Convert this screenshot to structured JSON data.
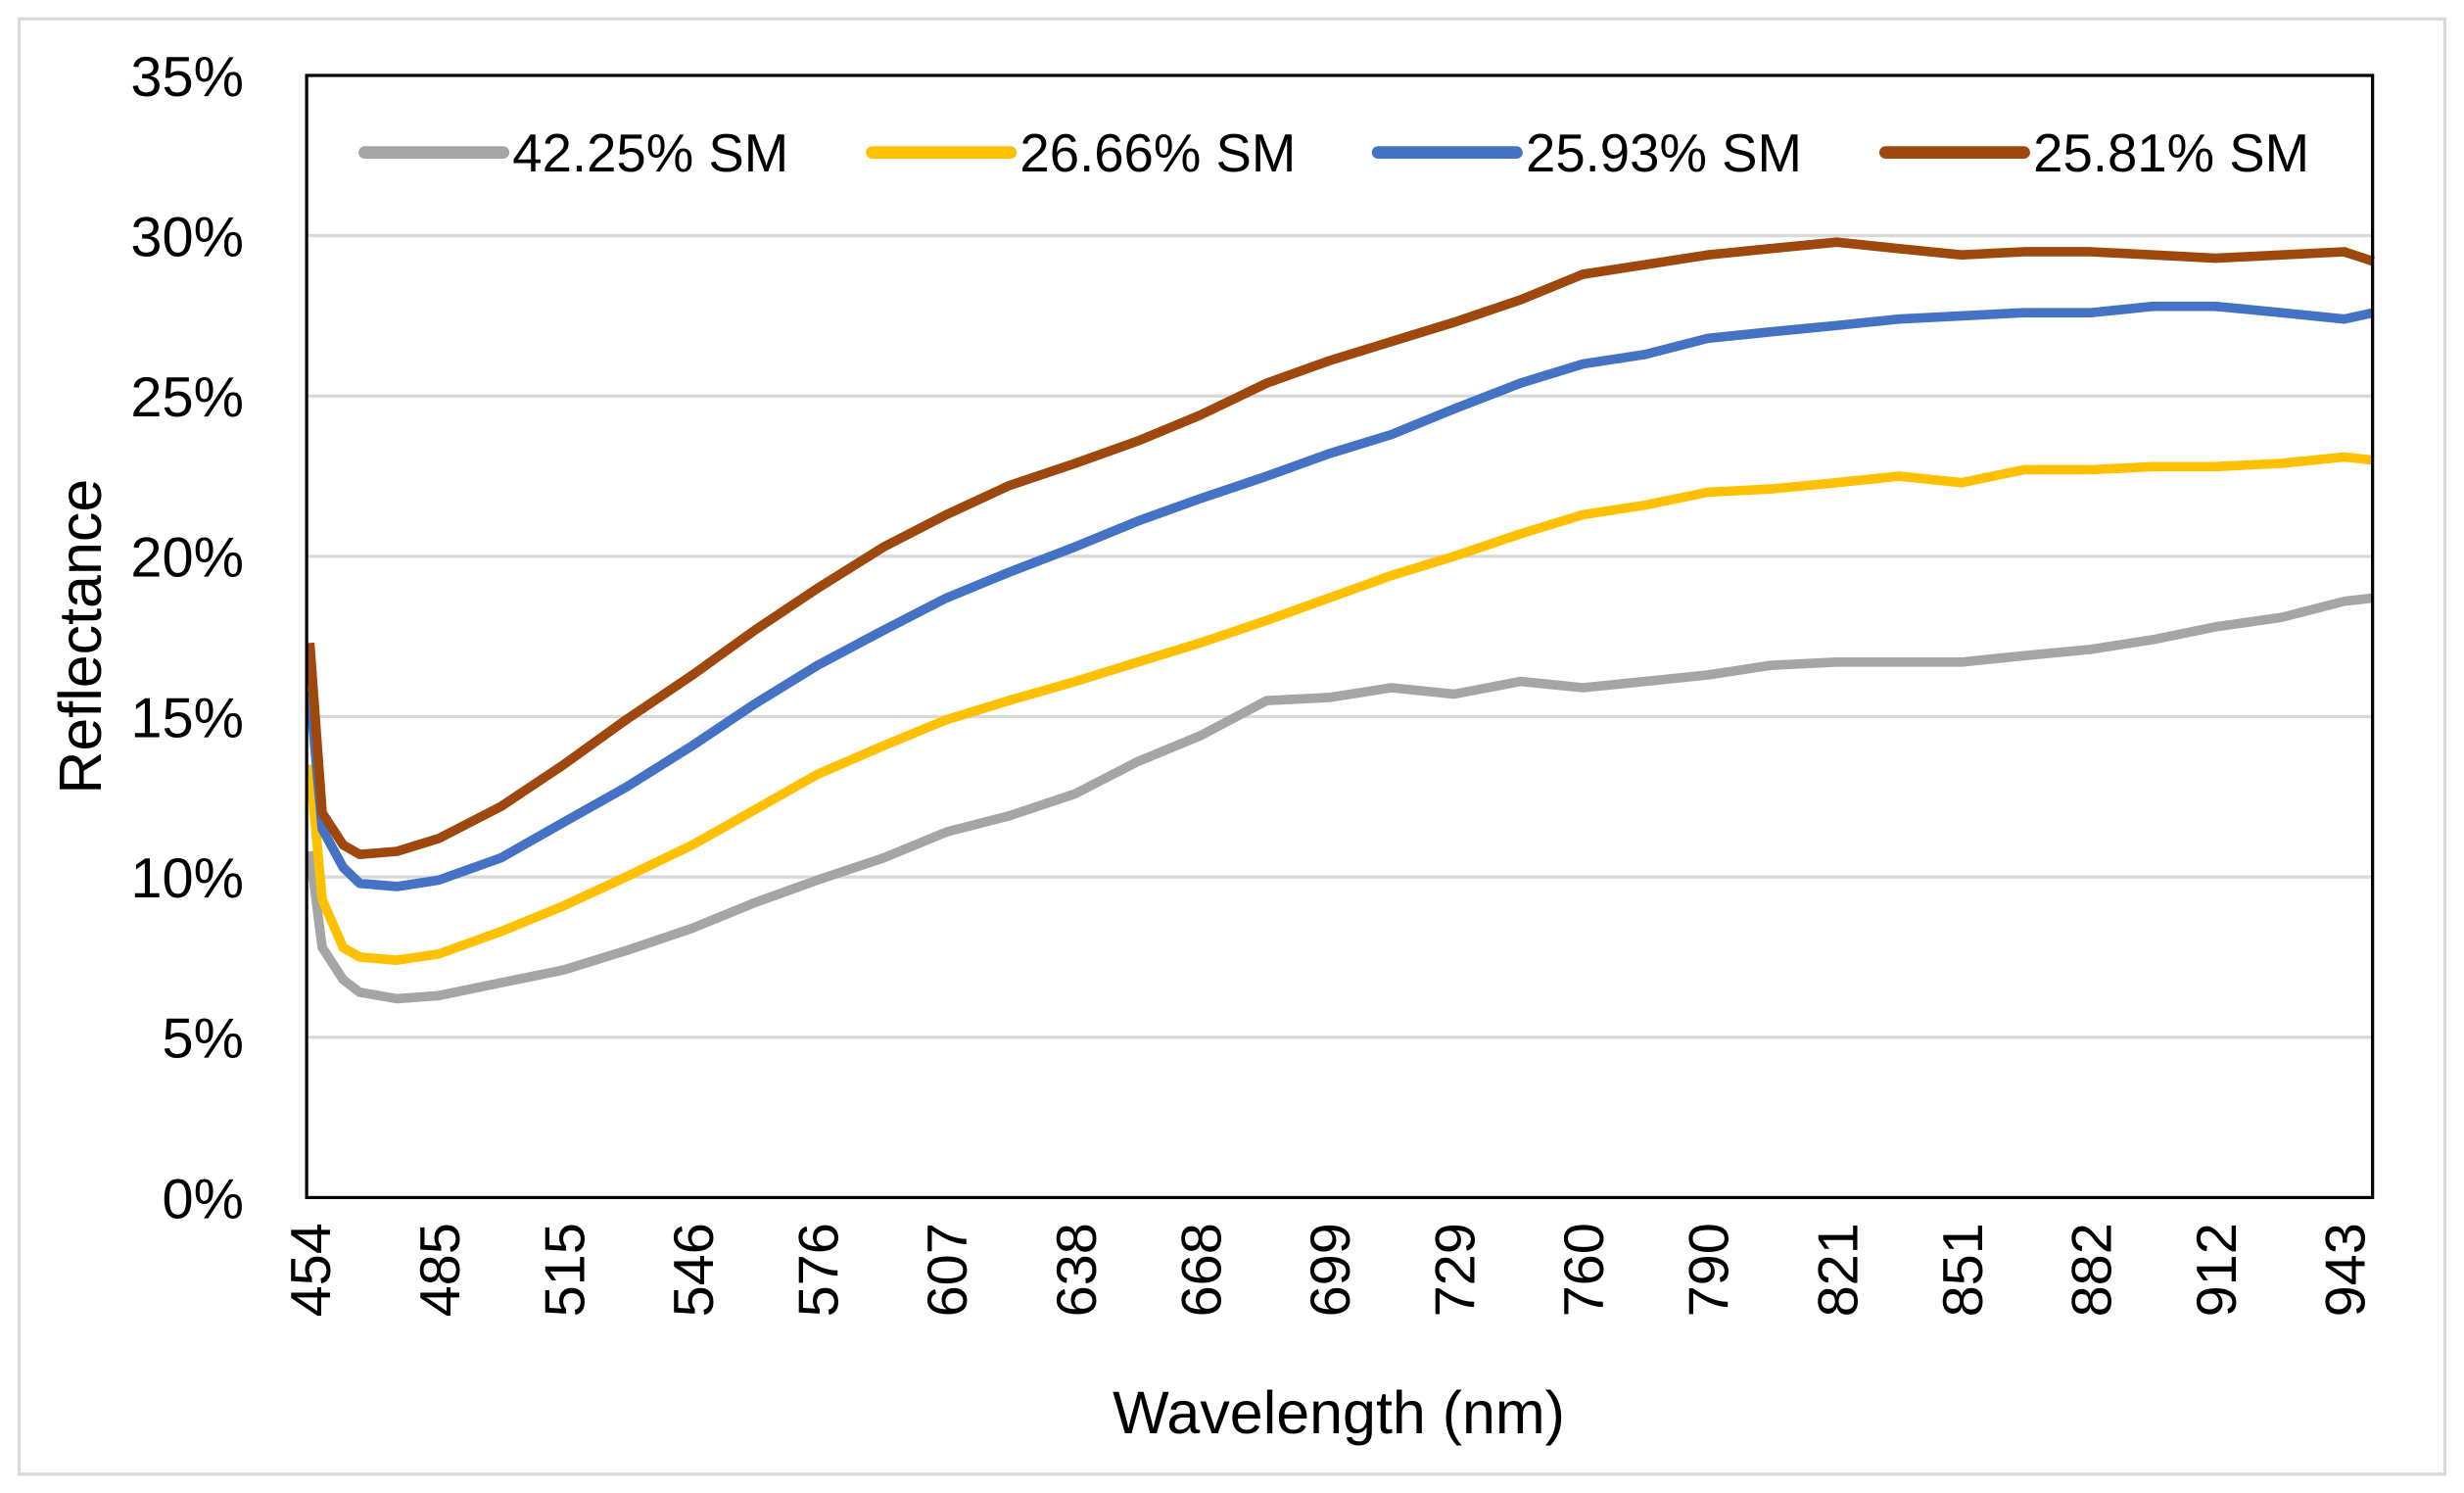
{
  "chart_data": {
    "type": "line",
    "title": "",
    "xlabel": "Wavelength (nm)",
    "ylabel": "Reflectance",
    "xlim": [
      454,
      950
    ],
    "ylim": [
      0,
      35
    ],
    "x_tick_labels": [
      "454",
      "485",
      "515",
      "546",
      "576",
      "607",
      "638",
      "668",
      "699",
      "729",
      "760",
      "790",
      "821",
      "851",
      "882",
      "912",
      "943"
    ],
    "y_tick_labels": [
      "0%",
      "5%",
      "10%",
      "15%",
      "20%",
      "25%",
      "30%",
      "35%"
    ],
    "y_ticks": [
      0,
      5,
      10,
      15,
      20,
      25,
      30,
      35
    ],
    "grid": "horizontal",
    "legend_position": "top",
    "x": [
      454,
      457,
      462,
      466,
      475,
      485,
      500,
      515,
      530,
      546,
      561,
      576,
      592,
      607,
      622,
      638,
      653,
      668,
      684,
      699,
      714,
      729,
      745,
      760,
      775,
      790,
      805,
      821,
      836,
      851,
      866,
      882,
      897,
      912,
      928,
      943,
      950
    ],
    "series": [
      {
        "name": "42.25% SM",
        "color": "#a5a5a5",
        "values": [
          10.8,
          7.8,
          6.8,
          6.4,
          6.2,
          6.3,
          6.7,
          7.1,
          7.7,
          8.4,
          9.2,
          9.9,
          10.6,
          11.4,
          11.9,
          12.6,
          13.6,
          14.4,
          15.5,
          15.6,
          15.9,
          15.7,
          16.1,
          15.9,
          16.1,
          16.3,
          16.6,
          16.7,
          16.7,
          16.7,
          16.9,
          17.1,
          17.4,
          17.8,
          18.1,
          18.6,
          18.7
        ]
      },
      {
        "name": "26.66% SM",
        "color": "#ffc000",
        "values": [
          13.5,
          9.3,
          7.8,
          7.5,
          7.4,
          7.6,
          8.3,
          9.1,
          10.0,
          11.0,
          12.1,
          13.2,
          14.1,
          14.9,
          15.5,
          16.1,
          16.7,
          17.3,
          18.0,
          18.7,
          19.4,
          20.0,
          20.7,
          21.3,
          21.6,
          22.0,
          22.1,
          22.3,
          22.5,
          22.3,
          22.7,
          22.7,
          22.8,
          22.8,
          22.9,
          23.1,
          23.0
        ]
      },
      {
        "name": "25.93% SM",
        "color": "#4472c4",
        "values": [
          15.8,
          11.5,
          10.3,
          9.8,
          9.7,
          9.9,
          10.6,
          11.7,
          12.8,
          14.1,
          15.4,
          16.6,
          17.7,
          18.7,
          19.5,
          20.3,
          21.1,
          21.8,
          22.5,
          23.2,
          23.8,
          24.6,
          25.4,
          26.0,
          26.3,
          26.8,
          27.0,
          27.2,
          27.4,
          27.5,
          27.6,
          27.6,
          27.8,
          27.8,
          27.6,
          27.4,
          27.6
        ]
      },
      {
        "name": "25.81% SM",
        "color": "#9e480e",
        "values": [
          17.3,
          12.0,
          11.0,
          10.7,
          10.8,
          11.2,
          12.2,
          13.5,
          14.9,
          16.3,
          17.7,
          19.0,
          20.3,
          21.3,
          22.2,
          22.9,
          23.6,
          24.4,
          25.4,
          26.1,
          26.7,
          27.3,
          28.0,
          28.8,
          29.1,
          29.4,
          29.6,
          29.8,
          29.6,
          29.4,
          29.5,
          29.5,
          29.4,
          29.3,
          29.4,
          29.5,
          29.2
        ]
      }
    ]
  }
}
